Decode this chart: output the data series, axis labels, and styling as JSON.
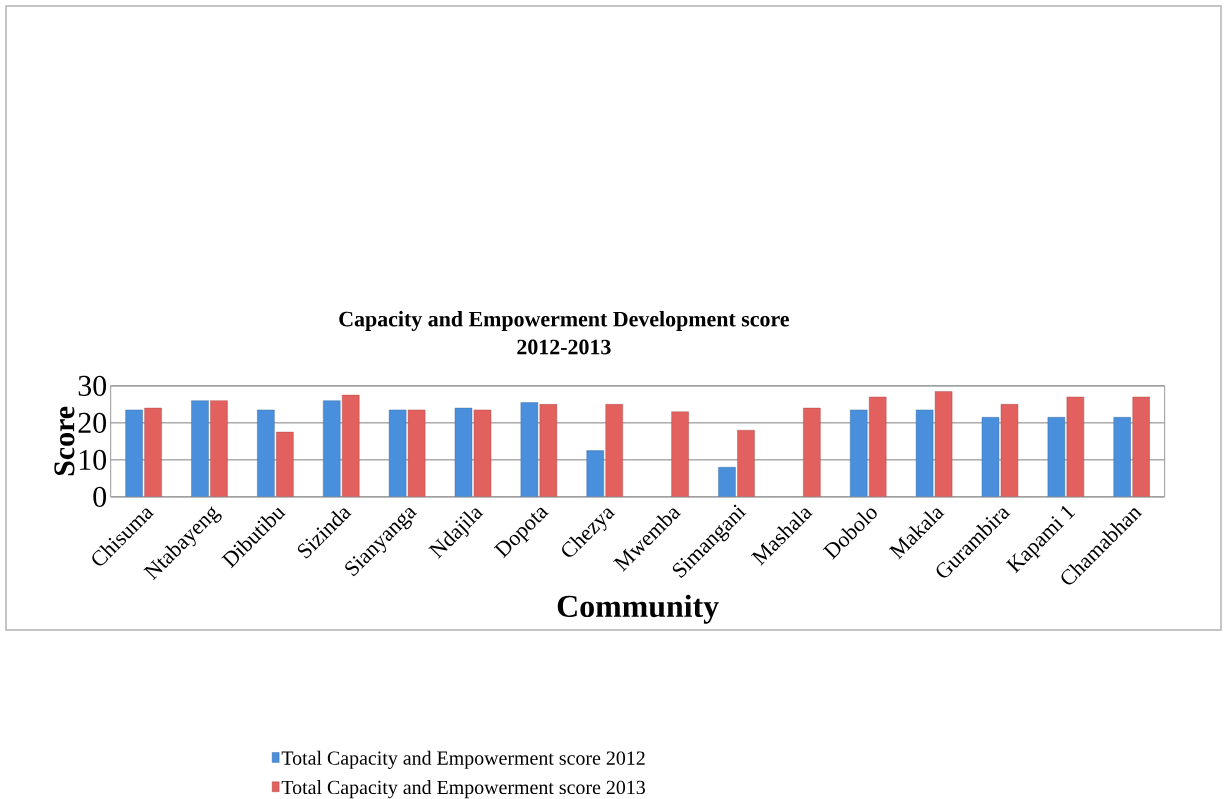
{
  "chart_data": {
    "type": "bar",
    "title": "Capacity and Empowerment Development score\n2012-2013",
    "xlabel": "Community",
    "ylabel": "Score",
    "categories": [
      "Chisuma",
      "Ntabayeng",
      "Dibutibu",
      "Sizinda",
      "Sianyanga",
      "Ndajila",
      "Dopota",
      "Chezya",
      "Mwemba",
      "Simangani",
      "Mashala",
      "Dobolo",
      "Makala",
      "Gurambira",
      "Kapami 1",
      "Chamabhan"
    ],
    "series": [
      {
        "name": "Total Capacity and Empowerment score  2012",
        "color": "#4a8fdc",
        "values": [
          23.5,
          26,
          23.5,
          26,
          23.5,
          24,
          25.5,
          12.5,
          null,
          8,
          null,
          23.5,
          23.5,
          21.5,
          21.5,
          21.5
        ]
      },
      {
        "name": "Total Capacity and Empowerment score  2013",
        "color": "#e2605e",
        "values": [
          24,
          26,
          17.5,
          27.5,
          23.5,
          23.5,
          25,
          25,
          23,
          18,
          24,
          27,
          28.5,
          25,
          27,
          27
        ]
      }
    ],
    "ylim": [
      0,
      30
    ],
    "yticks": [
      0,
      10,
      20,
      30
    ],
    "grid": "y",
    "legend": "bottom"
  }
}
